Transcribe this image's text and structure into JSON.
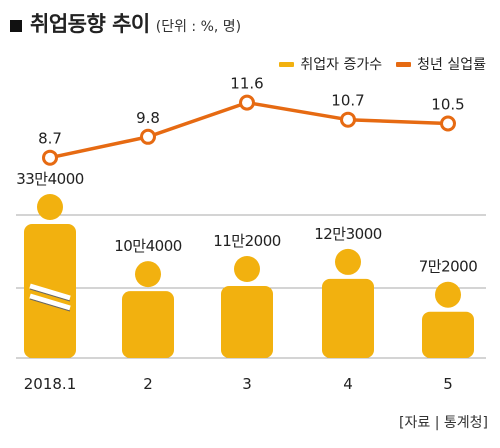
{
  "title": "취업동향 추이",
  "unit": "(단위 : %, 명)",
  "source": "[자료 | 통계청]",
  "colors": {
    "bar": "#f2b10f",
    "line": "#e66a12",
    "grid": "#aaaaaa"
  },
  "chart_data": {
    "type": "bar+line",
    "categories": [
      "2018.1",
      "2",
      "3",
      "4",
      "5"
    ],
    "series": [
      {
        "name": "취업자 증가수",
        "kind": "pictogram-bar",
        "values": [
          334000,
          104000,
          112000,
          123000,
          72000
        ],
        "labels": [
          "33만4000",
          "10만4000",
          "11만2000",
          "12만3000",
          "7만2000"
        ]
      },
      {
        "name": "청년 실업률",
        "kind": "line",
        "values": [
          8.7,
          9.8,
          11.6,
          10.7,
          10.5
        ],
        "labels": [
          "8.7",
          "9.8",
          "11.6",
          "10.7",
          "10.5"
        ]
      }
    ],
    "axis_break_on_first_bar": true,
    "grid": true,
    "legend_position": "top-right"
  }
}
